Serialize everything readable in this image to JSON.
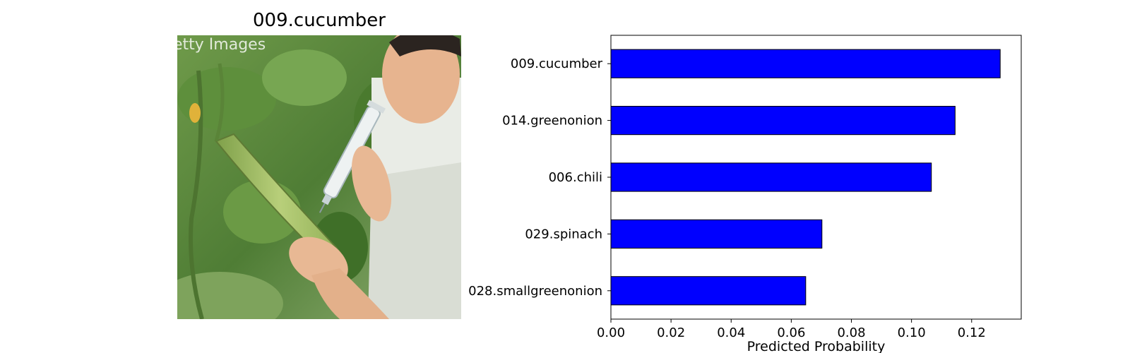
{
  "image_panel": {
    "title": "009.cucumber",
    "watermark": "etty Images"
  },
  "chart_data": {
    "type": "bar",
    "orientation": "horizontal",
    "categories": [
      "009.cucumber",
      "014.greenonion",
      "006.chili",
      "029.spinach",
      "028.smallgreenonion"
    ],
    "values": [
      0.1295,
      0.1145,
      0.1066,
      0.0702,
      0.0648
    ],
    "xlabel": "Predicted Probability",
    "ylabel": "",
    "xticks": [
      "0.00",
      "0.02",
      "0.04",
      "0.06",
      "0.08",
      "0.10",
      "0.12"
    ],
    "xlim": [
      0,
      0.1365
    ],
    "bar_color": "#0000ff",
    "bar_edge_color": "#000000",
    "grid": false
  }
}
